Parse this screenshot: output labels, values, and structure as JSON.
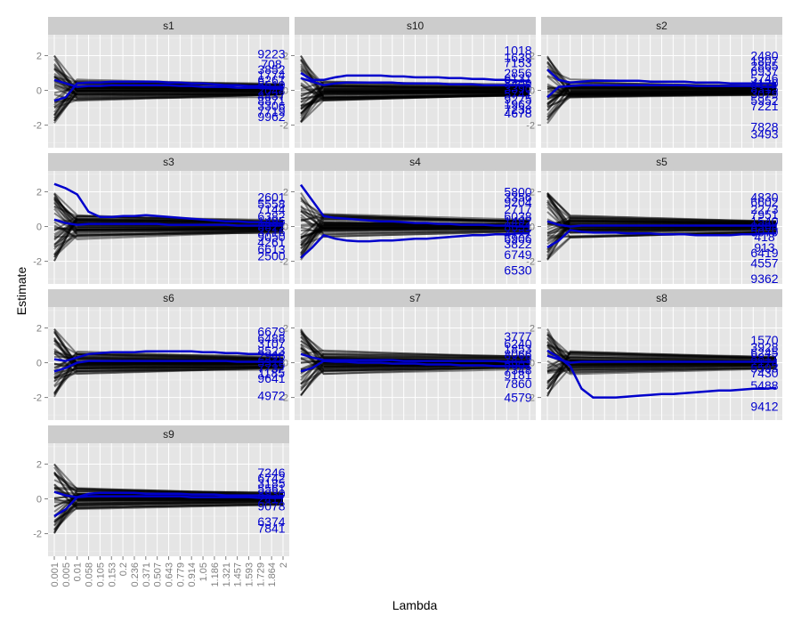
{
  "chart_data": {
    "type": "line",
    "xlabel": "Lambda",
    "ylabel": "Estimate",
    "x_ticks": [
      "0.001",
      "0.005",
      "0.01",
      "0.058",
      "0.105",
      "0.153",
      "0.2",
      "0.236",
      "0.371",
      "0.507",
      "0.643",
      "0.779",
      "0.914",
      "1.05",
      "1.186",
      "1.321",
      "1.457",
      "1.593",
      "1.729",
      "1.864",
      "2"
    ],
    "ylim": [
      -3.3,
      3.2
    ],
    "y_ticks": [
      -2,
      0,
      2
    ],
    "grid": true,
    "colors": {
      "panel_bg": "#e5e5e5",
      "strip_bg": "#cccccc",
      "grid_major": "#ffffff",
      "background_lines": "#000000",
      "highlight": "#0000cc"
    },
    "facets": [
      {
        "name": "s1",
        "labels": [
          {
            "text": "9223",
            "y": 2.1
          },
          {
            "text": "708",
            "y": 1.5
          },
          {
            "text": "3852",
            "y": 1.2
          },
          {
            "text": "1774",
            "y": 0.9
          },
          {
            "text": "6261",
            "y": 0.6
          },
          {
            "text": "5519",
            "y": 0.3
          },
          {
            "text": "2048",
            "y": 0.0
          },
          {
            "text": "4437",
            "y": -0.3
          },
          {
            "text": "8871",
            "y": -0.6
          },
          {
            "text": "3306",
            "y": -0.9
          },
          {
            "text": "7719",
            "y": -1.2
          },
          {
            "text": "9962",
            "y": -1.5
          }
        ],
        "highlight": [
          {
            "y": [
              -0.6,
              -0.4,
              0.4,
              0.45,
              0.45,
              0.5,
              0.5,
              0.5,
              0.5,
              0.5,
              0.45,
              0.45,
              0.4,
              0.4,
              0.35,
              0.3,
              0.3,
              0.25,
              0.25,
              0.2,
              0.2
            ]
          },
          {
            "y": [
              0.6,
              0.4,
              0.2,
              0.25,
              0.25,
              0.3,
              0.3,
              0.3,
              0.3,
              0.3,
              0.3,
              0.25,
              0.25,
              0.2,
              0.2,
              0.2,
              0.15,
              0.15,
              0.15,
              0.1,
              0.1
            ]
          }
        ]
      },
      {
        "name": "s10",
        "labels": [
          {
            "text": "1018",
            "y": 2.3
          },
          {
            "text": "1639",
            "y": 1.9
          },
          {
            "text": "7153",
            "y": 1.6
          },
          {
            "text": "2856",
            "y": 1.0
          },
          {
            "text": "6131",
            "y": 0.7
          },
          {
            "text": "8409",
            "y": 0.4
          },
          {
            "text": "3390",
            "y": 0.1
          },
          {
            "text": "5741",
            "y": -0.2
          },
          {
            "text": "9275",
            "y": -0.5
          },
          {
            "text": "1962",
            "y": -0.8
          },
          {
            "text": "7238",
            "y": -1.1
          },
          {
            "text": "4678",
            "y": -1.3
          }
        ],
        "highlight": [
          {
            "y": [
              1.0,
              0.6,
              0.6,
              0.75,
              0.85,
              0.85,
              0.85,
              0.85,
              0.8,
              0.8,
              0.75,
              0.75,
              0.75,
              0.7,
              0.7,
              0.65,
              0.65,
              0.6,
              0.6,
              0.55,
              0.55
            ]
          },
          {
            "y": [
              0.7,
              0.5,
              0.3,
              0.4,
              0.45,
              0.45,
              0.45,
              0.45,
              0.45,
              0.4,
              0.4,
              0.4,
              0.4,
              0.35,
              0.35,
              0.35,
              0.3,
              0.3,
              0.3,
              0.3,
              0.3
            ]
          }
        ]
      },
      {
        "name": "s2",
        "labels": [
          {
            "text": "2480",
            "y": 2.0
          },
          {
            "text": "1807",
            "y": 1.7
          },
          {
            "text": "2865",
            "y": 1.4
          },
          {
            "text": "6937",
            "y": 1.1
          },
          {
            "text": "5746",
            "y": 0.7
          },
          {
            "text": "4120",
            "y": 0.4
          },
          {
            "text": "8315",
            "y": 0.1
          },
          {
            "text": "3079",
            "y": -0.2
          },
          {
            "text": "5952",
            "y": -0.6
          },
          {
            "text": "7221",
            "y": -0.9
          },
          {
            "text": "7828",
            "y": -2.1
          },
          {
            "text": "3493",
            "y": -2.5
          }
        ],
        "highlight": [
          {
            "y": [
              1.2,
              0.6,
              0.45,
              0.5,
              0.55,
              0.55,
              0.55,
              0.55,
              0.55,
              0.5,
              0.5,
              0.5,
              0.5,
              0.45,
              0.45,
              0.45,
              0.4,
              0.4,
              0.4,
              0.4,
              0.4
            ]
          },
          {
            "y": [
              -0.4,
              0.2,
              0.25,
              0.3,
              0.3,
              0.3,
              0.3,
              0.3,
              0.3,
              0.3,
              0.3,
              0.3,
              0.3,
              0.25,
              0.25,
              0.25,
              0.25,
              0.25,
              0.25,
              0.2,
              0.2
            ]
          }
        ]
      },
      {
        "name": "s3",
        "labels": [
          {
            "text": "2601",
            "y": 1.7
          },
          {
            "text": "5558",
            "y": 1.3
          },
          {
            "text": "7144",
            "y": 1.0
          },
          {
            "text": "6382",
            "y": 0.6
          },
          {
            "text": "1495",
            "y": 0.3
          },
          {
            "text": "8827",
            "y": 0.0
          },
          {
            "text": "3716",
            "y": -0.3
          },
          {
            "text": "9050",
            "y": -0.6
          },
          {
            "text": "4261",
            "y": -0.9
          },
          {
            "text": "6613",
            "y": -1.3
          },
          {
            "text": "2500",
            "y": -1.7
          }
        ],
        "highlight": [
          {
            "y": [
              2.45,
              2.2,
              1.85,
              0.85,
              0.55,
              0.55,
              0.6,
              0.6,
              0.65,
              0.6,
              0.55,
              0.5,
              0.45,
              0.4,
              0.35,
              0.3,
              0.3,
              0.25,
              0.25,
              0.2,
              0.2
            ]
          },
          {
            "y": [
              0.4,
              0.2,
              0.1,
              0.15,
              0.15,
              0.15,
              0.15,
              0.15,
              0.15,
              0.15,
              0.1,
              0.1,
              0.1,
              0.1,
              0.1,
              0.1,
              0.05,
              0.05,
              0.05,
              0.05,
              0.05
            ]
          }
        ]
      },
      {
        "name": "s4",
        "labels": [
          {
            "text": "5800",
            "y": 2.0
          },
          {
            "text": "3356",
            "y": 1.7
          },
          {
            "text": "9204",
            "y": 1.4
          },
          {
            "text": "2717",
            "y": 1.0
          },
          {
            "text": "6038",
            "y": 0.6
          },
          {
            "text": "1492",
            "y": 0.3
          },
          {
            "text": "8651",
            "y": 0.0
          },
          {
            "text": "4127",
            "y": -0.4
          },
          {
            "text": "6906",
            "y": -0.7
          },
          {
            "text": "3822",
            "y": -1.0
          },
          {
            "text": "6749",
            "y": -1.6
          },
          {
            "text": "6530",
            "y": -2.5
          }
        ],
        "highlight": [
          {
            "y": [
              2.4,
              1.5,
              0.6,
              0.5,
              0.45,
              0.4,
              0.35,
              0.3,
              0.3,
              0.25,
              0.2,
              0.2,
              0.15,
              0.15,
              0.1,
              0.1,
              0.1,
              0.05,
              0.05,
              0.0,
              0.0
            ]
          },
          {
            "y": [
              -1.8,
              -1.2,
              -0.5,
              -0.7,
              -0.8,
              -0.85,
              -0.85,
              -0.8,
              -0.8,
              -0.75,
              -0.7,
              -0.7,
              -0.65,
              -0.6,
              -0.55,
              -0.5,
              -0.5,
              -0.45,
              -0.45,
              -0.4,
              -0.4
            ]
          }
        ]
      },
      {
        "name": "s5",
        "labels": [
          {
            "text": "4830",
            "y": 1.7
          },
          {
            "text": "6602",
            "y": 1.4
          },
          {
            "text": "2273",
            "y": 1.0
          },
          {
            "text": "7951",
            "y": 0.7
          },
          {
            "text": "1540",
            "y": 0.3
          },
          {
            "text": "8364",
            "y": 0.0
          },
          {
            "text": "5079",
            "y": -0.3
          },
          {
            "text": "418",
            "y": -0.6
          },
          {
            "text": "913",
            "y": -1.2
          },
          {
            "text": "6419",
            "y": -1.5
          },
          {
            "text": "4557",
            "y": -2.1
          },
          {
            "text": "9362",
            "y": -3.0
          }
        ],
        "highlight": [
          {
            "y": [
              -1.2,
              -0.8,
              -0.2,
              -0.3,
              -0.35,
              -0.35,
              -0.35,
              -0.4,
              -0.4,
              -0.4,
              -0.45,
              -0.45,
              -0.45,
              -0.5,
              -0.5,
              -0.5,
              -0.5,
              -0.45,
              -0.45,
              -0.4,
              -0.4
            ]
          },
          {
            "y": [
              0.3,
              0.1,
              0.0,
              0.05,
              0.05,
              0.05,
              0.05,
              0.05,
              0.05,
              0.05,
              0.05,
              0.05,
              0.05,
              0.05,
              0.05,
              0.05,
              0.05,
              0.05,
              0.05,
              0.05,
              0.05
            ]
          }
        ]
      },
      {
        "name": "s6",
        "labels": [
          {
            "text": "6679",
            "y": 1.8
          },
          {
            "text": "6488",
            "y": 1.4
          },
          {
            "text": "3107",
            "y": 1.1
          },
          {
            "text": "8523",
            "y": 0.7
          },
          {
            "text": "2946",
            "y": 0.4
          },
          {
            "text": "5318",
            "y": 0.0
          },
          {
            "text": "7732",
            "y": -0.3
          },
          {
            "text": "1185",
            "y": -0.6
          },
          {
            "text": "9641",
            "y": -0.9
          },
          {
            "text": "4972",
            "y": -1.9
          }
        ],
        "highlight": [
          {
            "y": [
              0.2,
              0.1,
              0.3,
              0.5,
              0.55,
              0.6,
              0.6,
              0.6,
              0.65,
              0.65,
              0.65,
              0.65,
              0.65,
              0.6,
              0.6,
              0.55,
              0.55,
              0.5,
              0.5,
              0.45,
              0.45
            ]
          },
          {
            "y": [
              -0.5,
              -0.3,
              0.0,
              0.1,
              0.1,
              0.1,
              0.1,
              0.1,
              0.1,
              0.1,
              0.1,
              0.1,
              0.1,
              0.1,
              0.1,
              0.1,
              0.05,
              0.05,
              0.05,
              0.05,
              0.05
            ]
          }
        ]
      },
      {
        "name": "s7",
        "labels": [
          {
            "text": "3777",
            "y": 1.5
          },
          {
            "text": "6240",
            "y": 1.1
          },
          {
            "text": "1853",
            "y": 0.8
          },
          {
            "text": "8066",
            "y": 0.5
          },
          {
            "text": "2419",
            "y": 0.2
          },
          {
            "text": "5902",
            "y": -0.1
          },
          {
            "text": "7348",
            "y": -0.4
          },
          {
            "text": "9181",
            "y": -0.7
          },
          {
            "text": "7860",
            "y": -1.2
          },
          {
            "text": "4579",
            "y": -2.0
          }
        ],
        "highlight": [
          {
            "y": [
              -0.5,
              -0.3,
              0.1,
              0.05,
              0.05,
              0.0,
              0.0,
              0.0,
              -0.05,
              -0.05,
              -0.05,
              -0.1,
              -0.1,
              -0.1,
              -0.15,
              -0.15,
              -0.15,
              -0.2,
              -0.2,
              -0.2,
              -0.2
            ]
          },
          {
            "y": [
              0.5,
              0.3,
              0.15,
              0.15,
              0.15,
              0.15,
              0.15,
              0.15,
              0.15,
              0.1,
              0.1,
              0.1,
              0.1,
              0.1,
              0.1,
              0.1,
              0.1,
              0.1,
              0.05,
              0.05,
              0.05
            ]
          }
        ]
      },
      {
        "name": "s8",
        "labels": [
          {
            "text": "1570",
            "y": 1.3
          },
          {
            "text": "3928",
            "y": 0.9
          },
          {
            "text": "6245",
            "y": 0.6
          },
          {
            "text": "8817",
            "y": 0.3
          },
          {
            "text": "2174",
            "y": 0.0
          },
          {
            "text": "5593",
            "y": -0.3
          },
          {
            "text": "7430",
            "y": -0.6
          },
          {
            "text": "5488",
            "y": -1.3
          },
          {
            "text": "9412",
            "y": -2.5
          }
        ],
        "highlight": [
          {
            "y": [
              0.7,
              0.3,
              -0.2,
              -1.5,
              -2.0,
              -2.0,
              -2.0,
              -1.95,
              -1.9,
              -1.85,
              -1.8,
              -1.8,
              -1.75,
              -1.7,
              -1.65,
              -1.6,
              -1.6,
              -1.55,
              -1.5,
              -1.5,
              -1.45
            ]
          },
          {
            "y": [
              0.4,
              0.2,
              0.0,
              0.05,
              0.05,
              0.05,
              0.05,
              0.05,
              0.05,
              0.05,
              0.05,
              0.05,
              0.05,
              0.05,
              0.05,
              0.05,
              0.05,
              0.05,
              0.05,
              0.05,
              0.05
            ]
          }
        ]
      },
      {
        "name": "s9",
        "labels": [
          {
            "text": "7246",
            "y": 1.5
          },
          {
            "text": "6742",
            "y": 1.2
          },
          {
            "text": "3185",
            "y": 0.9
          },
          {
            "text": "5561",
            "y": 0.6
          },
          {
            "text": "8930",
            "y": 0.3
          },
          {
            "text": "2417",
            "y": 0.0
          },
          {
            "text": "9078",
            "y": -0.4
          },
          {
            "text": "6374",
            "y": -1.3
          },
          {
            "text": "7841",
            "y": -1.7
          }
        ],
        "highlight": [
          {
            "y": [
              -1.0,
              -0.6,
              0.1,
              0.15,
              0.15,
              0.15,
              0.15,
              0.15,
              0.15,
              0.15,
              0.15,
              0.15,
              0.1,
              0.1,
              0.1,
              0.1,
              0.1,
              0.1,
              0.05,
              0.05,
              0.05
            ]
          },
          {
            "y": [
              0.4,
              0.2,
              0.1,
              0.3,
              0.35,
              0.35,
              0.35,
              0.35,
              0.3,
              0.3,
              0.3,
              0.3,
              0.25,
              0.25,
              0.25,
              0.2,
              0.2,
              0.2,
              0.2,
              0.15,
              0.15
            ]
          }
        ]
      }
    ]
  }
}
